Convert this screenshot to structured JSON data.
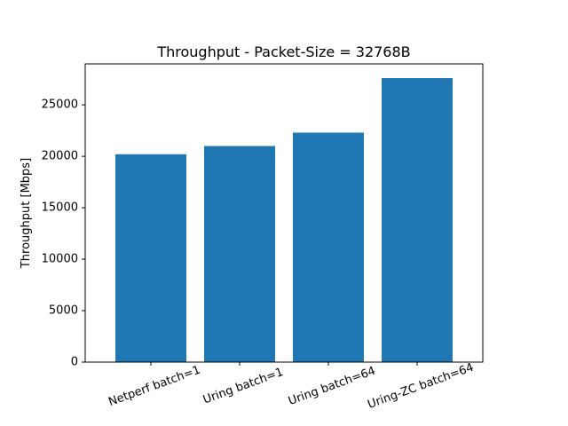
{
  "chart_data": {
    "type": "bar",
    "title": "Throughput - Packet-Size = 32768B",
    "xlabel": "",
    "ylabel": "Throughput [Mbps]",
    "categories": [
      "Netperf batch=1",
      "Uring batch=1",
      "Uring batch=64",
      "Uring-ZC batch=64"
    ],
    "values": [
      20200,
      21000,
      22300,
      27600
    ],
    "ylim": [
      0,
      28980
    ],
    "yticks": [
      0,
      5000,
      10000,
      15000,
      20000,
      25000
    ],
    "ytick_labels": [
      "0",
      "5000",
      "10000",
      "15000",
      "20000",
      "25000"
    ],
    "grid": false,
    "legend": "none",
    "bar_color": "#1f77b4",
    "xtick_rotation_deg": -20
  }
}
